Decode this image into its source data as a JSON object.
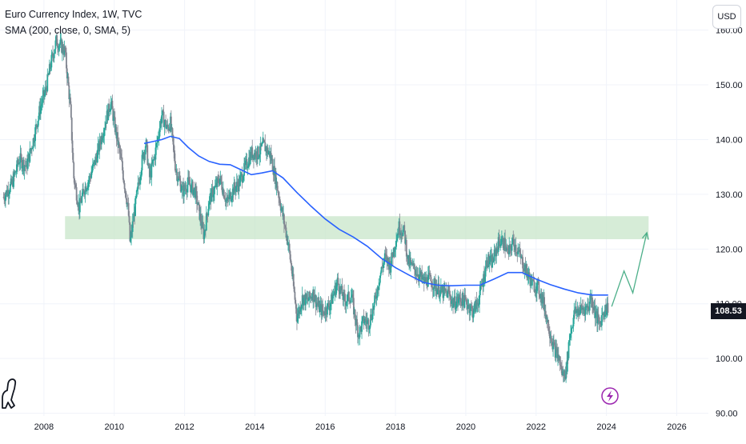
{
  "legend": {
    "symbol_line": "Euro Currency Index, 1W, TVC",
    "indicator_line": "SMA (200, close, 0, SMA, 5)"
  },
  "currency_button": "USD",
  "last_price": "108.53",
  "colors": {
    "up": "#26a69a",
    "down": "#808590",
    "sma": "#2962ff",
    "zone": "#c8e6c9",
    "projection": "#4caf89",
    "lightning": "#9c27b0",
    "grid": "#f0f3fa",
    "price_tag_bg": "#131722"
  },
  "icons": {
    "logo": "tradingview-dino-icon",
    "event": "lightning-bolt-icon"
  },
  "chart_data": {
    "type": "candlestick",
    "title": "Euro Currency Index, 1W, TVC",
    "x_axis": {
      "ticks": [
        "2008",
        "2010",
        "2012",
        "2014",
        "2016",
        "2018",
        "2020",
        "2022",
        "2024",
        "2026"
      ],
      "range": [
        2006.75,
        2026.9
      ]
    },
    "y_axis": {
      "position": "right",
      "ticks": [
        "90.00",
        "100.00",
        "110.00",
        "120.00",
        "130.00",
        "140.00",
        "150.00",
        "160.00"
      ],
      "range": [
        89.5,
        165.5
      ]
    },
    "grid": true,
    "price_path": [
      [
        2006.85,
        129.5
      ],
      [
        2007.1,
        132.0
      ],
      [
        2007.3,
        136.5
      ],
      [
        2007.5,
        135.0
      ],
      [
        2007.7,
        140.0
      ],
      [
        2007.9,
        146.0
      ],
      [
        2008.05,
        149.0
      ],
      [
        2008.2,
        154.0
      ],
      [
        2008.35,
        158.0
      ],
      [
        2008.5,
        157.0
      ],
      [
        2008.6,
        156.0
      ],
      [
        2008.75,
        146.0
      ],
      [
        2008.85,
        133.0
      ],
      [
        2009.0,
        127.5
      ],
      [
        2009.15,
        131.0
      ],
      [
        2009.3,
        133.0
      ],
      [
        2009.5,
        137.0
      ],
      [
        2009.7,
        142.0
      ],
      [
        2009.9,
        147.0
      ],
      [
        2010.0,
        143.0
      ],
      [
        2010.2,
        136.0
      ],
      [
        2010.4,
        127.0
      ],
      [
        2010.45,
        121.0
      ],
      [
        2010.6,
        128.0
      ],
      [
        2010.8,
        136.5
      ],
      [
        2010.9,
        139.5
      ],
      [
        2011.0,
        133.0
      ],
      [
        2011.15,
        137.0
      ],
      [
        2011.35,
        144.5
      ],
      [
        2011.5,
        142.0
      ],
      [
        2011.6,
        143.0
      ],
      [
        2011.75,
        134.5
      ],
      [
        2011.95,
        130.5
      ],
      [
        2012.1,
        132.0
      ],
      [
        2012.3,
        130.5
      ],
      [
        2012.5,
        124.0
      ],
      [
        2012.55,
        122.5
      ],
      [
        2012.7,
        129.0
      ],
      [
        2012.9,
        131.5
      ],
      [
        2013.0,
        133.0
      ],
      [
        2013.2,
        128.5
      ],
      [
        2013.4,
        131.0
      ],
      [
        2013.55,
        132.0
      ],
      [
        2013.7,
        134.5
      ],
      [
        2013.9,
        137.5
      ],
      [
        2014.1,
        137.5
      ],
      [
        2014.25,
        139.0
      ],
      [
        2014.45,
        137.0
      ],
      [
        2014.6,
        132.5
      ],
      [
        2014.75,
        127.5
      ],
      [
        2014.95,
        121.0
      ],
      [
        2015.05,
        116.0
      ],
      [
        2015.1,
        113.0
      ],
      [
        2015.2,
        107.5
      ],
      [
        2015.35,
        111.0
      ],
      [
        2015.5,
        110.5
      ],
      [
        2015.65,
        112.0
      ],
      [
        2015.8,
        109.5
      ],
      [
        2015.95,
        108.5
      ],
      [
        2016.15,
        110.0
      ],
      [
        2016.35,
        114.0
      ],
      [
        2016.55,
        110.5
      ],
      [
        2016.75,
        111.5
      ],
      [
        2016.85,
        107.5
      ],
      [
        2016.95,
        104.5
      ],
      [
        2017.1,
        107.0
      ],
      [
        2017.25,
        106.5
      ],
      [
        2017.4,
        110.0
      ],
      [
        2017.55,
        115.0
      ],
      [
        2017.7,
        118.5
      ],
      [
        2017.85,
        117.0
      ],
      [
        2018.0,
        121.5
      ],
      [
        2018.1,
        124.0
      ],
      [
        2018.25,
        123.0
      ],
      [
        2018.35,
        118.0
      ],
      [
        2018.5,
        116.5
      ],
      [
        2018.65,
        115.5
      ],
      [
        2018.8,
        114.0
      ],
      [
        2018.95,
        114.5
      ],
      [
        2019.1,
        113.5
      ],
      [
        2019.3,
        112.0
      ],
      [
        2019.5,
        112.0
      ],
      [
        2019.65,
        110.0
      ],
      [
        2019.85,
        111.0
      ],
      [
        2020.05,
        110.0
      ],
      [
        2020.2,
        108.5
      ],
      [
        2020.35,
        110.5
      ],
      [
        2020.5,
        114.5
      ],
      [
        2020.6,
        118.0
      ],
      [
        2020.75,
        117.5
      ],
      [
        2020.95,
        121.5
      ],
      [
        2021.1,
        121.0
      ],
      [
        2021.2,
        119.0
      ],
      [
        2021.35,
        121.5
      ],
      [
        2021.55,
        118.5
      ],
      [
        2021.75,
        115.5
      ],
      [
        2021.9,
        113.5
      ],
      [
        2022.05,
        113.0
      ],
      [
        2022.2,
        110.5
      ],
      [
        2022.35,
        106.0
      ],
      [
        2022.5,
        102.0
      ],
      [
        2022.65,
        100.0
      ],
      [
        2022.75,
        97.0
      ],
      [
        2022.85,
        97.5
      ],
      [
        2022.95,
        104.0
      ],
      [
        2023.1,
        108.5
      ],
      [
        2023.3,
        109.0
      ],
      [
        2023.5,
        109.5
      ],
      [
        2023.55,
        111.5
      ],
      [
        2023.7,
        108.0
      ],
      [
        2023.8,
        106.0
      ],
      [
        2023.9,
        108.5
      ],
      [
        2024.05,
        109.5
      ]
    ],
    "sma_200": [
      [
        2010.85,
        139.3
      ],
      [
        2011.0,
        139.5
      ],
      [
        2011.35,
        140.0
      ],
      [
        2011.6,
        140.6
      ],
      [
        2011.85,
        140.2
      ],
      [
        2012.1,
        138.6
      ],
      [
        2012.4,
        137.0
      ],
      [
        2012.7,
        136.0
      ],
      [
        2013.0,
        135.5
      ],
      [
        2013.3,
        135.4
      ],
      [
        2013.6,
        134.5
      ],
      [
        2013.9,
        133.6
      ],
      [
        2014.2,
        133.9
      ],
      [
        2014.5,
        134.3
      ],
      [
        2014.8,
        133.0
      ],
      [
        2015.2,
        130.3
      ],
      [
        2015.6,
        127.8
      ],
      [
        2016.0,
        125.5
      ],
      [
        2016.4,
        123.6
      ],
      [
        2016.8,
        122.2
      ],
      [
        2017.2,
        120.5
      ],
      [
        2017.6,
        118.3
      ],
      [
        2018.0,
        116.6
      ],
      [
        2018.4,
        115.2
      ],
      [
        2018.8,
        113.9
      ],
      [
        2019.2,
        113.4
      ],
      [
        2019.6,
        113.3
      ],
      [
        2020.0,
        113.4
      ],
      [
        2020.4,
        113.4
      ],
      [
        2020.8,
        114.5
      ],
      [
        2021.2,
        115.7
      ],
      [
        2021.6,
        115.7
      ],
      [
        2022.0,
        114.5
      ],
      [
        2022.4,
        113.5
      ],
      [
        2022.8,
        112.7
      ],
      [
        2023.2,
        112.0
      ],
      [
        2023.6,
        111.6
      ],
      [
        2024.05,
        111.6
      ]
    ],
    "sma_label": "SMA (200, close, 0, SMA, 5)",
    "zone": {
      "x": [
        2008.6,
        2025.2
      ],
      "y": [
        121.8,
        126.0
      ]
    },
    "projection": [
      [
        2024.15,
        109.5
      ],
      [
        2024.5,
        116.0
      ],
      [
        2024.75,
        112.0
      ],
      [
        2025.15,
        123.0
      ]
    ],
    "last_price": 108.53,
    "event_marker_x": 2024.1
  }
}
